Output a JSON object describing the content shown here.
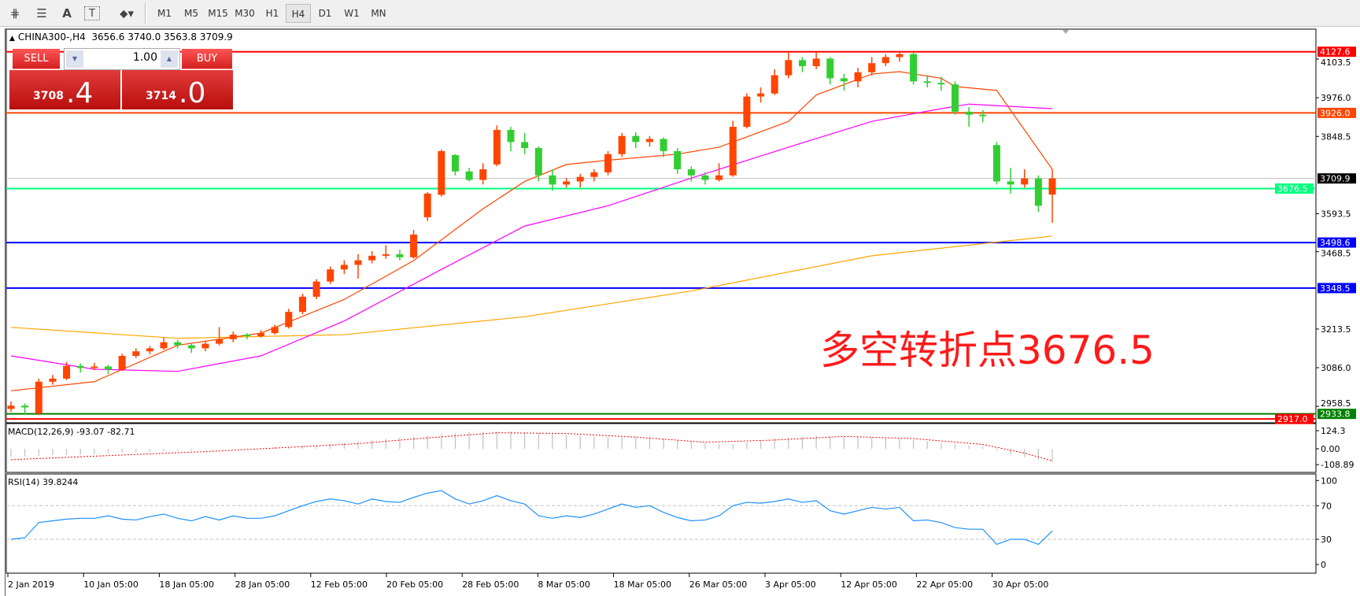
{
  "toolbar": {
    "icons": [
      "fibonacci-expansion-icon",
      "fibonacci-fan-icon",
      "text-icon",
      "text-label-icon",
      "arrows-dropdown-icon"
    ],
    "text_icon": "A",
    "label_icon": "T",
    "timeframes": [
      "M1",
      "M5",
      "M15",
      "M30",
      "H1",
      "H4",
      "D1",
      "W1",
      "MN"
    ],
    "active_timeframe": "H4"
  },
  "chart": {
    "symbol": "CHINA300-,H4",
    "ohlc": "3656.6 3740.0 3563.8 3709.9"
  },
  "trade_panel": {
    "sell_label": "SELL",
    "buy_label": "BUY",
    "volume": "1.00",
    "sell_price_main": "3708",
    "sell_price_frac": ".4",
    "buy_price_main": "3714",
    "buy_price_frac": ".0"
  },
  "annotation": "多空转折点3676.5",
  "colors": {
    "up": "#ff4500",
    "down": "#32cd32",
    "ma_fast": "#ff4500",
    "ma_mid": "#ff00ff",
    "ma_slow": "#ffa500",
    "rsi": "#1e90ff",
    "macd_hist": "#c0c0c0",
    "macd_signal": "#ff0000"
  },
  "chart_data": {
    "type": "candlestick",
    "price_ticks": [
      "4103.5",
      "3976.0",
      "3848.5",
      "3593.5",
      "3468.5",
      "3213.5",
      "3086.0",
      "2958.5"
    ],
    "levels": [
      {
        "price": 4127.6,
        "label": "4127.6",
        "color": "#ff0000"
      },
      {
        "price": 3926.0,
        "label": "3926.0",
        "color": "#ff4500"
      },
      {
        "price": 3709.9,
        "label": "3709.9",
        "color": "#000000",
        "line": "#c0c0c0"
      },
      {
        "price": 3676.5,
        "label": "3676.5",
        "color": "#00ff7f"
      },
      {
        "price": 3498.6,
        "label": "3498.6",
        "color": "#0000ff"
      },
      {
        "price": 3348.5,
        "label": "3348.5",
        "color": "#0000ff"
      },
      {
        "price": 2917.0,
        "label": "2917.0",
        "color": "#ff0000"
      },
      {
        "price": 2933.8,
        "label": "2933.8",
        "color": "#008000"
      }
    ],
    "dates": [
      "2 Jan 2019",
      "10 Jan 05:00",
      "18 Jan 05:00",
      "28 Jan 05:00",
      "12 Feb 05:00",
      "20 Feb 05:00",
      "28 Feb 05:00",
      "8 Mar 05:00",
      "18 Mar 05:00",
      "26 Mar 05:00",
      "3 Apr 05:00",
      "12 Apr 05:00",
      "22 Apr 05:00",
      "30 Apr 05:00"
    ],
    "candles": [
      [
        2950,
        2975,
        2940,
        2961
      ],
      [
        2961,
        2968,
        2930,
        2955
      ],
      [
        2935,
        3050,
        2930,
        3040
      ],
      [
        3040,
        3062,
        3030,
        3050
      ],
      [
        3050,
        3105,
        3045,
        3092
      ],
      [
        3092,
        3100,
        3070,
        3085
      ],
      [
        3085,
        3102,
        3078,
        3090
      ],
      [
        3090,
        3095,
        3065,
        3080
      ],
      [
        3080,
        3132,
        3075,
        3125
      ],
      [
        3125,
        3150,
        3118,
        3140
      ],
      [
        3140,
        3158,
        3130,
        3150
      ],
      [
        3150,
        3185,
        3145,
        3170
      ],
      [
        3170,
        3178,
        3150,
        3160
      ],
      [
        3160,
        3166,
        3135,
        3150
      ],
      [
        3150,
        3172,
        3140,
        3165
      ],
      [
        3165,
        3220,
        3160,
        3180
      ],
      [
        3180,
        3205,
        3170,
        3195
      ],
      [
        3195,
        3200,
        3180,
        3190
      ],
      [
        3190,
        3210,
        3185,
        3200
      ],
      [
        3200,
        3228,
        3195,
        3220
      ],
      [
        3220,
        3280,
        3215,
        3270
      ],
      [
        3270,
        3330,
        3262,
        3320
      ],
      [
        3320,
        3378,
        3312,
        3370
      ],
      [
        3370,
        3420,
        3362,
        3410
      ],
      [
        3410,
        3440,
        3395,
        3425
      ],
      [
        3425,
        3460,
        3380,
        3440
      ],
      [
        3440,
        3470,
        3430,
        3455
      ],
      [
        3455,
        3490,
        3445,
        3460
      ],
      [
        3460,
        3475,
        3440,
        3450
      ],
      [
        3450,
        3540,
        3445,
        3525
      ],
      [
        3582,
        3665,
        3570,
        3660
      ],
      [
        3656,
        3805,
        3650,
        3800
      ],
      [
        3787,
        3790,
        3720,
        3733
      ],
      [
        3733,
        3745,
        3700,
        3705
      ],
      [
        3705,
        3760,
        3690,
        3740
      ],
      [
        3756,
        3885,
        3750,
        3870
      ],
      [
        3870,
        3880,
        3800,
        3830
      ],
      [
        3830,
        3860,
        3790,
        3810
      ],
      [
        3810,
        3815,
        3700,
        3720
      ],
      [
        3720,
        3740,
        3670,
        3690
      ],
      [
        3690,
        3712,
        3680,
        3700
      ],
      [
        3700,
        3725,
        3680,
        3715
      ],
      [
        3715,
        3740,
        3700,
        3730
      ],
      [
        3730,
        3800,
        3720,
        3790
      ],
      [
        3790,
        3860,
        3780,
        3850
      ],
      [
        3850,
        3862,
        3810,
        3830
      ],
      [
        3830,
        3850,
        3815,
        3840
      ],
      [
        3840,
        3845,
        3780,
        3800
      ],
      [
        3800,
        3810,
        3725,
        3740
      ],
      [
        3740,
        3750,
        3700,
        3720
      ],
      [
        3720,
        3730,
        3690,
        3705
      ],
      [
        3705,
        3760,
        3700,
        3720
      ],
      [
        3720,
        3900,
        3715,
        3880
      ],
      [
        3880,
        3990,
        3875,
        3980
      ],
      [
        3980,
        4010,
        3960,
        3990
      ],
      [
        3990,
        4070,
        3985,
        4050
      ],
      [
        4050,
        4125,
        4040,
        4100
      ],
      [
        4100,
        4110,
        4060,
        4080
      ],
      [
        4080,
        4127,
        4070,
        4105
      ],
      [
        4105,
        4110,
        4020,
        4040
      ],
      [
        4040,
        4055,
        4000,
        4030
      ],
      [
        4030,
        4075,
        4010,
        4060
      ],
      [
        4060,
        4110,
        4050,
        4090
      ],
      [
        4090,
        4120,
        4080,
        4110
      ],
      [
        4110,
        4127.6,
        4095,
        4120
      ],
      [
        4120,
        4125,
        4020,
        4030
      ],
      [
        4030,
        4050,
        4010,
        4025
      ],
      [
        4025,
        4045,
        4000,
        4020
      ],
      [
        4020,
        4030,
        3920,
        3930
      ],
      [
        3930,
        3945,
        3880,
        3920
      ],
      [
        3920,
        3935,
        3895,
        3915
      ],
      [
        3820,
        3830,
        3690,
        3700
      ],
      [
        3700,
        3745,
        3660,
        3690
      ],
      [
        3690,
        3740,
        3680,
        3710
      ],
      [
        3710,
        3720,
        3600,
        3620
      ],
      [
        3656.6,
        3740.0,
        3563.8,
        3709.9
      ]
    ],
    "ma_fast": [
      [
        0,
        3010
      ],
      [
        6,
        3040
      ],
      [
        12,
        3160
      ],
      [
        18,
        3200
      ],
      [
        24,
        3311
      ],
      [
        29,
        3439
      ],
      [
        34,
        3610
      ],
      [
        37,
        3700
      ],
      [
        40,
        3756
      ],
      [
        43,
        3770
      ],
      [
        48,
        3790
      ],
      [
        51,
        3813
      ],
      [
        56,
        3898
      ],
      [
        58,
        3985
      ],
      [
        62,
        4054
      ],
      [
        64,
        4062
      ],
      [
        67,
        4040
      ],
      [
        68,
        4013
      ],
      [
        71,
        4000
      ],
      [
        73,
        3870
      ],
      [
        75,
        3740
      ]
    ],
    "ma_mid": [
      [
        0,
        3125
      ],
      [
        6,
        3081
      ],
      [
        12,
        3074
      ],
      [
        18,
        3125
      ],
      [
        24,
        3240
      ],
      [
        31,
        3410
      ],
      [
        37,
        3553
      ],
      [
        43,
        3620
      ],
      [
        49,
        3711
      ],
      [
        56,
        3813
      ],
      [
        62,
        3898
      ],
      [
        67,
        3940
      ],
      [
        69,
        3955
      ],
      [
        75,
        3940
      ]
    ],
    "ma_slow": [
      [
        0,
        3219
      ],
      [
        12,
        3183
      ],
      [
        24,
        3195
      ],
      [
        37,
        3254
      ],
      [
        49,
        3339
      ],
      [
        62,
        3455
      ],
      [
        75,
        3520
      ]
    ],
    "macd": {
      "label": "MACD(12,26,9) -93.07 -82.71",
      "ticks": [
        "124.3",
        "0.00",
        "-108.89"
      ],
      "main": [
        [
          0,
          -55
        ],
        [
          5,
          -40
        ],
        [
          10,
          -20
        ],
        [
          15,
          0
        ],
        [
          18,
          5
        ],
        [
          22,
          25
        ],
        [
          26,
          60
        ],
        [
          30,
          90
        ],
        [
          33,
          115
        ],
        [
          36,
          120
        ],
        [
          38,
          110
        ],
        [
          42,
          85
        ],
        [
          46,
          80
        ],
        [
          50,
          40
        ],
        [
          52,
          30
        ],
        [
          55,
          70
        ],
        [
          58,
          90
        ],
        [
          62,
          80
        ],
        [
          65,
          60
        ],
        [
          68,
          30
        ],
        [
          70,
          15
        ],
        [
          72,
          -40
        ],
        [
          75,
          -93.07
        ]
      ],
      "signal": [
        [
          0,
          -75
        ],
        [
          5,
          -55
        ],
        [
          10,
          -35
        ],
        [
          15,
          -15
        ],
        [
          20,
          10
        ],
        [
          25,
          35
        ],
        [
          30,
          75
        ],
        [
          35,
          110
        ],
        [
          40,
          105
        ],
        [
          45,
          80
        ],
        [
          50,
          45
        ],
        [
          55,
          60
        ],
        [
          60,
          85
        ],
        [
          65,
          70
        ],
        [
          70,
          30
        ],
        [
          73,
          -30
        ],
        [
          75,
          -82.71
        ]
      ]
    },
    "rsi": {
      "label": "RSI(14) 39.8244",
      "ticks": [
        "100",
        "70",
        "30",
        "0"
      ],
      "values": [
        30,
        32,
        50,
        52,
        54,
        55,
        55,
        58,
        54,
        53,
        57,
        60,
        55,
        52,
        57,
        53,
        58,
        55,
        55,
        58,
        64,
        70,
        75,
        78,
        76,
        72,
        78,
        75,
        74,
        80,
        85,
        88,
        78,
        72,
        76,
        82,
        76,
        72,
        58,
        55,
        58,
        56,
        60,
        66,
        72,
        68,
        70,
        62,
        56,
        52,
        53,
        58,
        70,
        74,
        73,
        75,
        78,
        74,
        76,
        64,
        60,
        64,
        68,
        66,
        68,
        52,
        53,
        50,
        44,
        42,
        42,
        24,
        30,
        30,
        24,
        39.8244
      ]
    }
  }
}
